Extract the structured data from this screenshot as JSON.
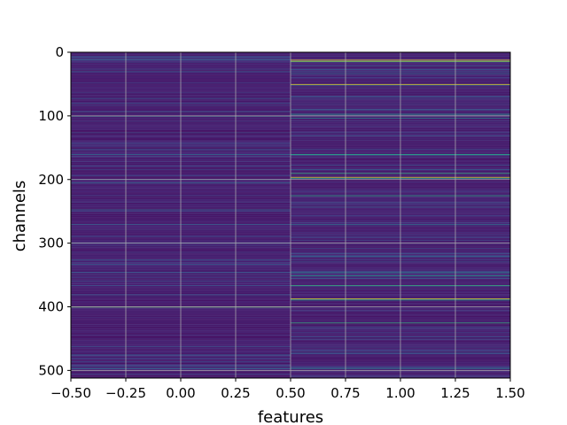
{
  "chart_data": {
    "type": "heatmap",
    "title": "",
    "xlabel": "features",
    "ylabel": "channels",
    "xlim": [
      -0.5,
      1.5
    ],
    "ylim": [
      512,
      0
    ],
    "y_inverted": true,
    "n_rows": 512,
    "n_cols": 2,
    "colormap": "viridis",
    "grid": true,
    "grid_color": "#b0b0b0",
    "x_ticks": [
      -0.5,
      -0.25,
      0.0,
      0.25,
      0.5,
      0.75,
      1.0,
      1.25,
      1.5
    ],
    "x_tick_labels": [
      "−0.50",
      "−0.25",
      "0.00",
      "0.25",
      "0.50",
      "0.75",
      "1.00",
      "1.25",
      "1.50"
    ],
    "y_ticks": [
      0,
      100,
      200,
      300,
      400,
      500
    ],
    "y_tick_labels": [
      "0",
      "100",
      "200",
      "300",
      "400",
      "500"
    ],
    "base_level": [
      0.05,
      0.12
    ],
    "highlights": [
      {
        "col": 0,
        "row": 30,
        "level": 0.3
      },
      {
        "col": 0,
        "row": 100,
        "level": 0.45
      },
      {
        "col": 0,
        "row": 160,
        "level": 0.35
      },
      {
        "col": 0,
        "row": 205,
        "level": 0.35
      },
      {
        "col": 0,
        "row": 270,
        "level": 0.3
      },
      {
        "col": 0,
        "row": 333,
        "level": 0.3
      },
      {
        "col": 0,
        "row": 400,
        "level": 0.75
      },
      {
        "col": 0,
        "row": 497,
        "level": 0.3
      },
      {
        "col": 1,
        "row": 12,
        "level": 1.0
      },
      {
        "col": 1,
        "row": 14,
        "level": 0.8
      },
      {
        "col": 1,
        "row": 50,
        "level": 0.95
      },
      {
        "col": 1,
        "row": 97,
        "level": 0.55
      },
      {
        "col": 1,
        "row": 103,
        "level": 0.45
      },
      {
        "col": 1,
        "row": 160,
        "level": 0.6
      },
      {
        "col": 1,
        "row": 190,
        "level": 0.65
      },
      {
        "col": 1,
        "row": 196,
        "level": 0.95
      },
      {
        "col": 1,
        "row": 198,
        "level": 0.55
      },
      {
        "col": 1,
        "row": 225,
        "level": 0.6
      },
      {
        "col": 1,
        "row": 270,
        "level": 0.35
      },
      {
        "col": 1,
        "row": 345,
        "level": 0.4
      },
      {
        "col": 1,
        "row": 351,
        "level": 0.55
      },
      {
        "col": 1,
        "row": 366,
        "level": 0.65
      },
      {
        "col": 1,
        "row": 387,
        "level": 0.95
      },
      {
        "col": 1,
        "row": 389,
        "level": 0.55
      },
      {
        "col": 1,
        "row": 425,
        "level": 0.65
      },
      {
        "col": 1,
        "row": 497,
        "level": 0.4
      }
    ]
  }
}
